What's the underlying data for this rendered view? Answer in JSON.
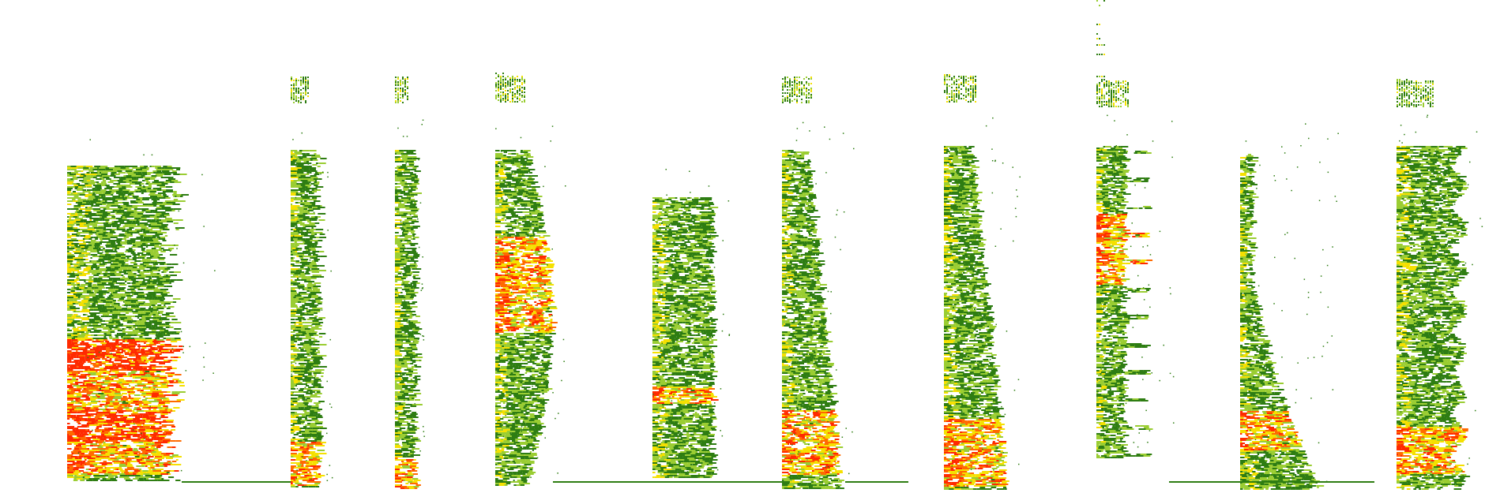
{
  "image": {
    "description_label": "spectrogram-strip",
    "palette": {
      "background": "#ffffff",
      "low": "#2e7d12",
      "mid": "#9acd32",
      "high": "#f5e000",
      "peak": "#ff6a00",
      "hot": "#ff2a00"
    },
    "segment_count": 13
  }
}
